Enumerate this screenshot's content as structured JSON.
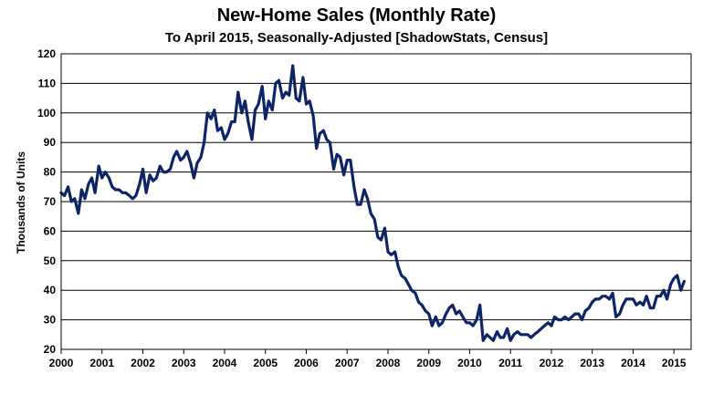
{
  "chart_data": {
    "type": "line",
    "title": "New-Home Sales (Monthly Rate)",
    "subtitle": "To April 2015, Seasonally-Adjusted [ShadowStats, Census]",
    "xlabel": "",
    "ylabel": "Thousands of Units",
    "xlim": [
      2000.0,
      2015.42
    ],
    "ylim": [
      20,
      120
    ],
    "yticks": [
      20,
      30,
      40,
      50,
      60,
      70,
      80,
      90,
      100,
      110,
      120
    ],
    "xticks": [
      "2000",
      "2001",
      "2002",
      "2003",
      "2004",
      "2005",
      "2006",
      "2007",
      "2008",
      "2009",
      "2010",
      "2011",
      "2012",
      "2013",
      "2014",
      "2015"
    ],
    "grid": true,
    "legend": "none",
    "line_color": "#0d2466",
    "series": [
      {
        "x": [
          2000.0,
          2000.08,
          2000.17,
          2000.25,
          2000.33,
          2000.42,
          2000.5,
          2000.58,
          2000.67,
          2000.75,
          2000.83,
          2000.92,
          2001.0,
          2001.08,
          2001.17,
          2001.25,
          2001.33,
          2001.42,
          2001.5,
          2001.58,
          2001.67,
          2001.75,
          2001.83,
          2001.92,
          2002.0,
          2002.08,
          2002.17,
          2002.25,
          2002.33,
          2002.42,
          2002.5,
          2002.58,
          2002.67,
          2002.75,
          2002.83,
          2002.92,
          2003.0,
          2003.08,
          2003.17,
          2003.25,
          2003.33,
          2003.42,
          2003.5,
          2003.58,
          2003.67,
          2003.75,
          2003.83,
          2003.92,
          2004.0,
          2004.08,
          2004.17,
          2004.25,
          2004.33,
          2004.42,
          2004.5,
          2004.58,
          2004.67,
          2004.75,
          2004.83,
          2004.92,
          2005.0,
          2005.08,
          2005.17,
          2005.25,
          2005.33,
          2005.42,
          2005.5,
          2005.58,
          2005.67,
          2005.75,
          2005.83,
          2005.92,
          2006.0,
          2006.08,
          2006.17,
          2006.25,
          2006.33,
          2006.42,
          2006.5,
          2006.58,
          2006.67,
          2006.75,
          2006.83,
          2006.92,
          2007.0,
          2007.08,
          2007.17,
          2007.25,
          2007.33,
          2007.42,
          2007.5,
          2007.58,
          2007.67,
          2007.75,
          2007.83,
          2007.92,
          2008.0,
          2008.08,
          2008.17,
          2008.25,
          2008.33,
          2008.42,
          2008.5,
          2008.58,
          2008.67,
          2008.75,
          2008.83,
          2008.92,
          2009.0,
          2009.08,
          2009.17,
          2009.25,
          2009.33,
          2009.42,
          2009.5,
          2009.58,
          2009.67,
          2009.75,
          2009.83,
          2009.92,
          2010.0,
          2010.08,
          2010.17,
          2010.25,
          2010.33,
          2010.42,
          2010.5,
          2010.58,
          2010.67,
          2010.75,
          2010.83,
          2010.92,
          2011.0,
          2011.08,
          2011.17,
          2011.25,
          2011.33,
          2011.42,
          2011.5,
          2011.58,
          2011.67,
          2011.75,
          2011.83,
          2011.92,
          2012.0,
          2012.08,
          2012.17,
          2012.25,
          2012.33,
          2012.42,
          2012.5,
          2012.58,
          2012.67,
          2012.75,
          2012.83,
          2012.92,
          2013.0,
          2013.08,
          2013.17,
          2013.25,
          2013.33,
          2013.42,
          2013.5,
          2013.58,
          2013.67,
          2013.75,
          2013.83,
          2013.92,
          2014.0,
          2014.08,
          2014.17,
          2014.25,
          2014.33,
          2014.42,
          2014.5,
          2014.58,
          2014.67,
          2014.75,
          2014.83,
          2014.92,
          2015.0,
          2015.08,
          2015.17,
          2015.25
        ],
        "values": [
          73,
          72,
          75,
          70,
          71,
          66,
          74,
          71,
          76,
          78,
          73,
          82,
          78,
          80,
          78,
          75,
          74,
          74,
          73,
          73,
          72,
          71,
          72,
          76,
          81,
          73,
          79,
          77,
          78,
          82,
          80,
          80,
          81,
          85,
          87,
          84,
          85,
          87,
          83,
          78,
          83,
          85,
          90,
          100,
          98,
          101,
          94,
          95,
          91,
          93,
          97,
          97,
          107,
          100,
          104,
          97,
          91,
          101,
          103,
          109,
          98,
          104,
          101,
          110,
          111,
          105,
          107,
          106,
          116,
          105,
          104,
          112,
          103,
          104,
          99,
          88,
          93,
          94,
          91,
          90,
          81,
          86,
          85,
          79,
          84,
          84,
          75,
          69,
          69,
          74,
          71,
          66,
          64,
          58,
          57,
          61,
          53,
          52,
          53,
          48,
          45,
          44,
          42,
          40,
          39,
          36,
          35,
          33,
          32,
          28,
          31,
          28,
          29,
          32,
          34,
          35,
          32,
          33,
          31,
          29,
          29,
          28,
          30,
          35,
          23,
          25,
          24,
          23,
          26,
          24,
          24,
          27,
          23,
          25,
          26,
          25,
          25,
          25,
          24,
          25,
          26,
          27,
          28,
          29,
          28,
          31,
          30,
          30,
          31,
          30,
          31,
          32,
          32,
          30,
          33,
          34,
          36,
          37,
          37,
          38,
          38,
          37,
          39,
          31,
          32,
          35,
          37,
          37,
          37,
          35,
          36,
          35,
          38,
          34,
          34,
          38,
          38,
          40,
          37,
          42,
          44,
          45,
          40,
          43
        ]
      }
    ]
  }
}
